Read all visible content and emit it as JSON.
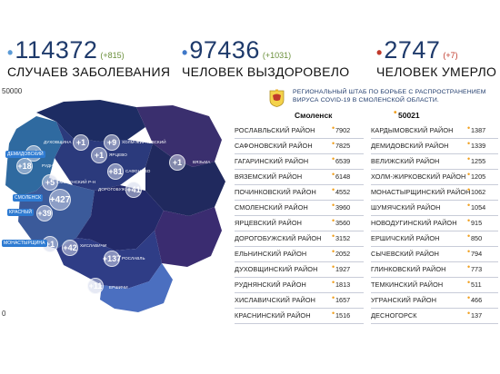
{
  "colors": {
    "cases_dot": "#5c9bd6",
    "recovered_dot": "#3f78c8",
    "deaths_dot": "#c0392b",
    "value_dot": "#f0a020"
  },
  "stats": {
    "cases": {
      "value": "114372",
      "delta": "(+815)",
      "caption": "СЛУЧАЕВ ЗАБОЛЕВАНИЯ"
    },
    "recovered": {
      "value": "97436",
      "delta": "(+1031)",
      "caption": "ЧЕЛОВЕК ВЫЗДОРОВЕЛО"
    },
    "deaths": {
      "value": "2747",
      "delta": "(+7)",
      "caption": "ЧЕЛОВЕК УМЕРЛО"
    }
  },
  "scale": {
    "max": "50000",
    "min": "0"
  },
  "header": {
    "line1": "РЕГИОНАЛЬНЫЙ ШТАБ ПО БОРЬБЕ С РАСПРОСТРАНЕНИЕМ",
    "line2": "ВИРУСА  COVID-19 В СМОЛЕНСКОЙ ОБЛАСТИ."
  },
  "city": {
    "name": "Смоленск",
    "value": "50021"
  },
  "districts_left": [
    {
      "name": "РОСЛАВЛЬСКИЙ РАЙОН",
      "value": "7902"
    },
    {
      "name": "САФОНОВСКИЙ РАЙОН",
      "value": "7825"
    },
    {
      "name": "ГАГАРИНСКИЙ РАЙОН",
      "value": "6539"
    },
    {
      "name": "ВЯЗЕМСКИЙ РАЙОН",
      "value": "6148"
    },
    {
      "name": "ПОЧИНКОВСКИЙ РАЙОН",
      "value": "4552"
    },
    {
      "name": "СМОЛЕНСКИЙ РАЙОН",
      "value": "3960"
    },
    {
      "name": "ЯРЦЕВСКИЙ РАЙОН",
      "value": "3560"
    },
    {
      "name": "ДОРОГОБУЖСКИЙ РАЙОН",
      "value": "3152"
    },
    {
      "name": "ЕЛЬНИНСКИЙ РАЙОН",
      "value": "2052"
    },
    {
      "name": "ДУХОВЩИНСКИЙ РАЙОН",
      "value": "1927"
    },
    {
      "name": "РУДНЯНСКИЙ РАЙОН",
      "value": "1813"
    },
    {
      "name": "ХИСЛАВИЧСКИЙ РАЙОН",
      "value": "1657"
    },
    {
      "name": "КРАСНИНСКИЙ РАЙОН",
      "value": "1516"
    }
  ],
  "districts_right": [
    {
      "name": "КАРДЫМОВСКИЙ РАЙОН",
      "value": "1387"
    },
    {
      "name": "ДЕМИДОВСКИЙ РАЙОН",
      "value": "1339"
    },
    {
      "name": "ВЕЛИЖСКИЙ РАЙОН",
      "value": "1255"
    },
    {
      "name": "ХОЛМ-ЖИРКОВСКИЙ РАЙОН",
      "value": "1205"
    },
    {
      "name": "МОНАСТЫРЩИНСКИЙ РАЙОН",
      "value": "1062"
    },
    {
      "name": "ШУМЯЧСКИЙ РАЙОН",
      "value": "1054"
    },
    {
      "name": "НОВОДУГИНСКИЙ РАЙОН",
      "value": "915"
    },
    {
      "name": "ЕРШИЧСКИЙ РАЙОН",
      "value": "850"
    },
    {
      "name": "СЫЧЕВСКИЙ РАЙОН",
      "value": "794"
    },
    {
      "name": "ГЛИНКОВСКИЙ РАЙОН",
      "value": "773"
    },
    {
      "name": "ТЕМКИНСКИЙ РАЙОН",
      "value": "511"
    },
    {
      "name": "УГРАНСКИЙ РАЙОН",
      "value": "466"
    },
    {
      "name": "ДЕСНОГОРСК",
      "value": "137"
    }
  ],
  "map_markers": [
    {
      "label": "+1",
      "big": false
    },
    {
      "label": "+1",
      "big": false
    },
    {
      "label": "+9",
      "big": false
    },
    {
      "label": "+18",
      "big": false
    },
    {
      "label": "+1",
      "big": false
    },
    {
      "label": "+81",
      "big": false
    },
    {
      "label": "+1",
      "big": false
    },
    {
      "label": "+5",
      "big": false
    },
    {
      "label": "+41",
      "big": false
    },
    {
      "label": "+427",
      "big": true
    },
    {
      "label": "+39",
      "big": false
    },
    {
      "label": "+1",
      "big": false
    },
    {
      "label": "+42",
      "big": false
    },
    {
      "label": "+137",
      "big": false
    },
    {
      "label": "+11",
      "big": false
    }
  ],
  "map_labels": [
    {
      "text": "ДЕМИДОВСКИЙ",
      "boxed": true
    },
    {
      "text": "ДУХОВЩИНА",
      "boxed": false
    },
    {
      "text": "ХОЛМ-ЖИРКОВСКИЙ",
      "boxed": false
    },
    {
      "text": "РУДНЯ",
      "boxed": false
    },
    {
      "text": "ЯРЦЕВО",
      "boxed": false
    },
    {
      "text": "САФОНОВО",
      "boxed": false
    },
    {
      "text": "ВЯЗЬМА",
      "boxed": false
    },
    {
      "text": "СМОЛЕНСКИЙ Р-Н",
      "boxed": false
    },
    {
      "text": "ДОРОГОБУЖ",
      "boxed": false
    },
    {
      "text": "СМОЛЕНСК",
      "boxed": true
    },
    {
      "text": "КРАСНЫЙ",
      "boxed": true
    },
    {
      "text": "МОНАСТЫРЩИНА",
      "boxed": true
    },
    {
      "text": "ХИСЛАВИЧИ",
      "boxed": false
    },
    {
      "text": "РОСЛАВЛЬ",
      "boxed": false
    },
    {
      "text": "ЕРШИЧИ",
      "boxed": false
    }
  ]
}
